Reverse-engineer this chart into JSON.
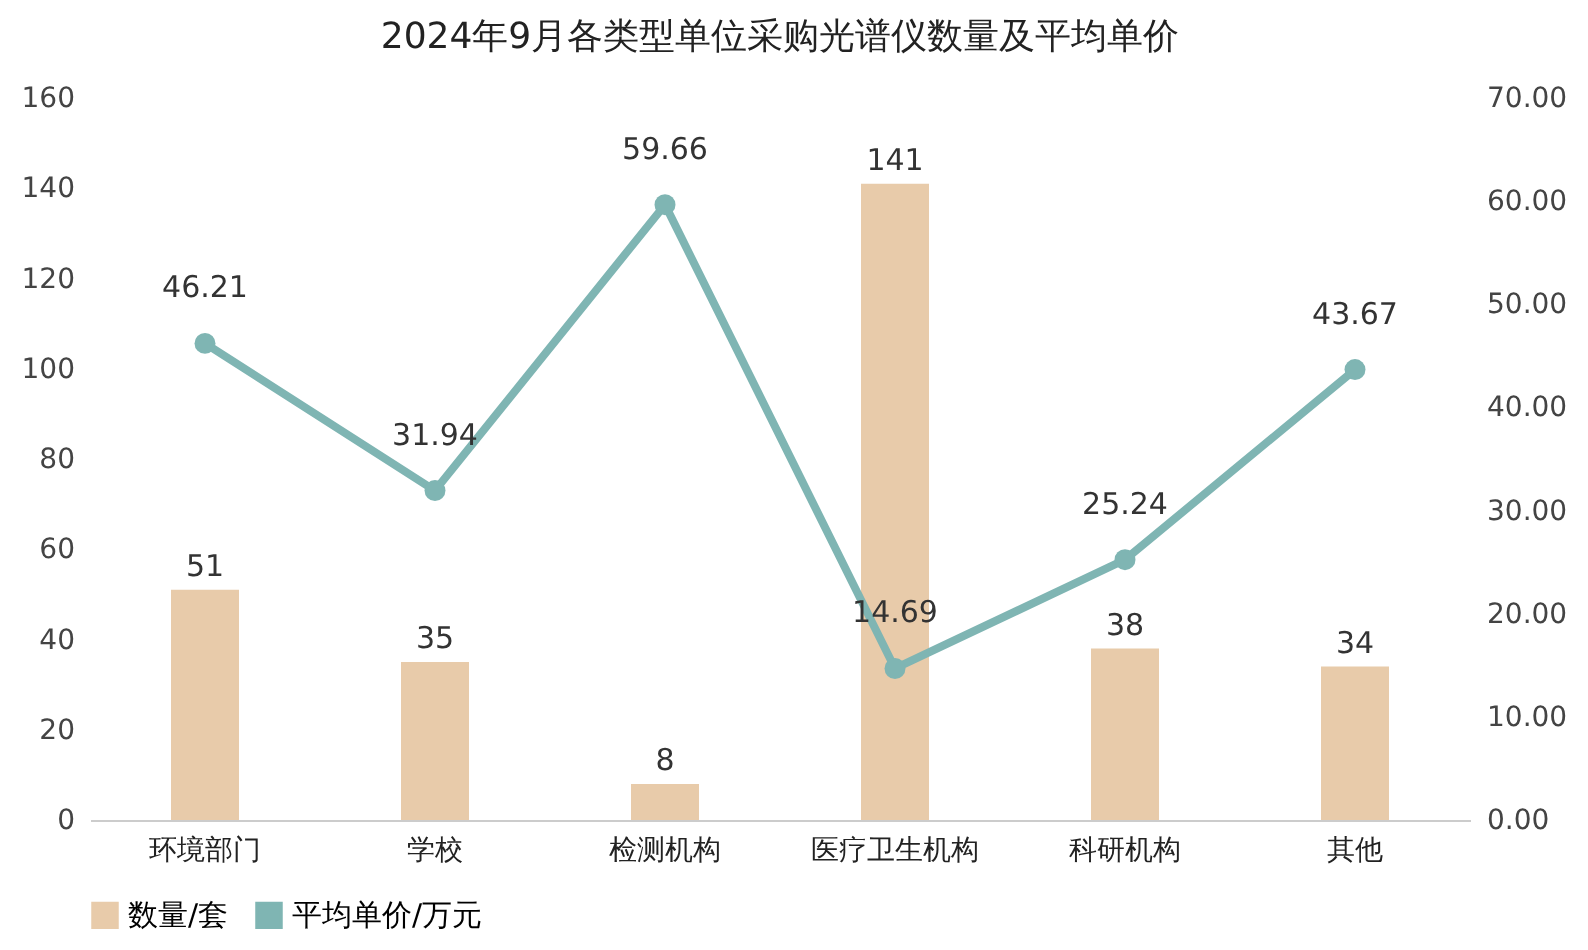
{
  "chart_data": {
    "type": "bar",
    "title": "2024年9月各类型单位采购光谱仪数量及平均单价",
    "categories": [
      "环境部门",
      "学校",
      "检测机构",
      "医疗卫生机构",
      "科研机构",
      "其他"
    ],
    "series": [
      {
        "name": "数量/套",
        "color": "#e8cbaa",
        "values": [
          51,
          35,
          8,
          141,
          38,
          34
        ]
      },
      {
        "name": "平均单价/万元",
        "type": "line",
        "axis": "y2",
        "color": "#7fb5b3",
        "marker": "circle",
        "values": [
          46.21,
          31.94,
          59.66,
          14.69,
          25.24,
          43.67
        ]
      }
    ],
    "ylim": [
      0,
      160
    ],
    "yticks": [
      0,
      20,
      40,
      60,
      80,
      100,
      120,
      140,
      160
    ],
    "y2lim": [
      0,
      70
    ],
    "y2ticks": [
      {
        "value": 0,
        "label": "0.00"
      },
      {
        "value": 10,
        "label": "10.00"
      },
      {
        "value": 20,
        "label": "20.00"
      },
      {
        "value": 30,
        "label": "30.00"
      },
      {
        "value": 40,
        "label": "40.00"
      },
      {
        "value": 50,
        "label": "50.00"
      },
      {
        "value": 60,
        "label": "60.00"
      },
      {
        "value": 70,
        "label": "70.00"
      }
    ],
    "data_labels": true,
    "legend": "bottom"
  }
}
